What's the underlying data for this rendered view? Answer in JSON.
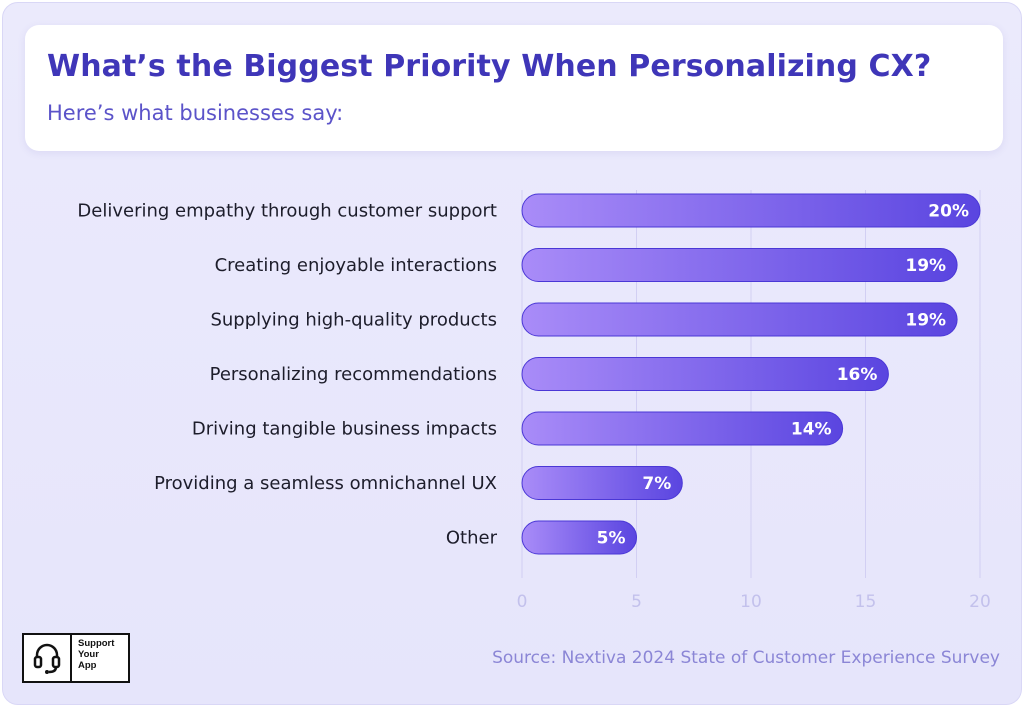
{
  "header": {
    "title": "What’s the Biggest Priority When Personalizing CX?",
    "subtitle": "Here’s what businesses say:"
  },
  "chart_data": {
    "type": "bar",
    "orientation": "horizontal",
    "categories": [
      "Delivering empathy through customer support",
      "Creating enjoyable interactions",
      "Supplying high-quality products",
      "Personalizing recommendations",
      "Driving tangible business impacts",
      "Providing a seamless omnichannel UX",
      "Other"
    ],
    "values": [
      20,
      19,
      19,
      16,
      14,
      7,
      5
    ],
    "value_labels": [
      "20%",
      "19%",
      "19%",
      "16%",
      "14%",
      "7%",
      "5%"
    ],
    "xlim": [
      0,
      20
    ],
    "xticks": [
      0,
      5,
      10,
      15,
      20
    ],
    "xtick_labels": [
      "0",
      "5",
      "10",
      "15",
      "20"
    ],
    "grid": true,
    "colors": {
      "bar_start": "#a98cf8",
      "bar_end": "#5a45e0",
      "grid": "#d2cff3"
    }
  },
  "footer": {
    "logo_text": "Support\nYour\nApp",
    "logo_icon": "headset-icon",
    "source": "Source: Nextiva 2024 State of Customer Experience Survey"
  }
}
